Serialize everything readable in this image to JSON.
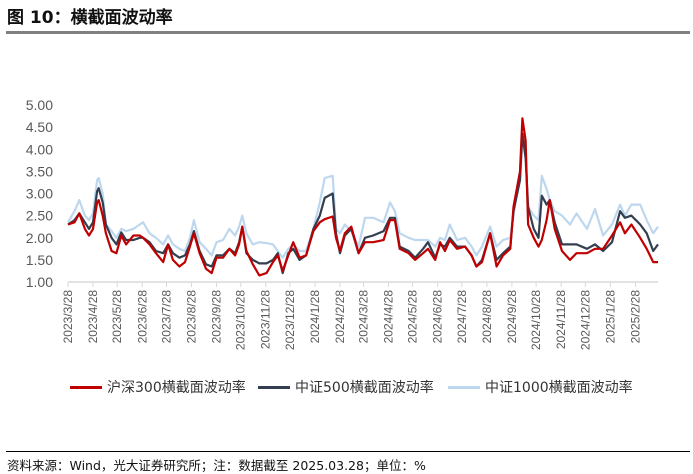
{
  "title": "图 10：横截面波动率",
  "footer": "资料来源：Wind，光大证券研究所；注：数据截至 2025.03.28；单位：%",
  "chart_data": {
    "type": "line",
    "title": "",
    "xlabel": "",
    "ylabel": "",
    "ylim": [
      1.0,
      5.0
    ],
    "yticks": [
      "1.00",
      "1.50",
      "2.00",
      "2.50",
      "3.00",
      "3.50",
      "4.00",
      "4.50",
      "5.00"
    ],
    "xlim": [
      "2023-03-28",
      "2025-03-28"
    ],
    "xticks": [
      "2023/3/28",
      "2023/4/28",
      "2023/5/28",
      "2023/6/28",
      "2023/7/28",
      "2023/8/28",
      "2023/9/28",
      "2023/10/28",
      "2023/11/28",
      "2023/12/28",
      "2024/1/28",
      "2024/2/28",
      "2024/3/28",
      "2024/4/28",
      "2024/5/28",
      "2024/6/28",
      "2024/7/28",
      "2024/8/28",
      "2024/9/28",
      "2024/10/28",
      "2024/11/28",
      "2024/12/28",
      "2025/1/28",
      "2025/2/28"
    ],
    "grid": false,
    "legend_position": "bottom",
    "x": [
      "2023-03-28",
      "2023-04-05",
      "2023-04-11",
      "2023-04-18",
      "2023-04-23",
      "2023-04-28",
      "2023-05-03",
      "2023-05-05",
      "2023-05-10",
      "2023-05-14",
      "2023-05-21",
      "2023-05-27",
      "2023-06-02",
      "2023-06-08",
      "2023-06-17",
      "2023-06-25",
      "2023-06-29",
      "2023-07-07",
      "2023-07-15",
      "2023-07-24",
      "2023-07-30",
      "2023-08-05",
      "2023-08-13",
      "2023-08-20",
      "2023-08-26",
      "2023-08-31",
      "2023-09-07",
      "2023-09-15",
      "2023-09-22",
      "2023-09-28",
      "2023-10-06",
      "2023-10-14",
      "2023-10-21",
      "2023-10-26",
      "2023-10-30",
      "2023-11-04",
      "2023-11-12",
      "2023-11-20",
      "2023-11-29",
      "2023-12-07",
      "2023-12-13",
      "2023-12-19",
      "2023-12-26",
      "2024-01-01",
      "2024-01-09",
      "2024-01-17",
      "2024-01-26",
      "2024-02-03",
      "2024-02-09",
      "2024-02-19",
      "2024-02-23",
      "2024-02-28",
      "2024-03-05",
      "2024-03-13",
      "2024-03-22",
      "2024-03-30",
      "2024-04-09",
      "2024-04-22",
      "2024-04-30",
      "2024-05-06",
      "2024-05-12",
      "2024-05-23",
      "2024-05-31",
      "2024-06-10",
      "2024-06-16",
      "2024-06-25",
      "2024-07-01",
      "2024-07-07",
      "2024-07-13",
      "2024-07-22",
      "2024-08-01",
      "2024-08-09",
      "2024-08-15",
      "2024-08-22",
      "2024-09-01",
      "2024-09-09",
      "2024-09-17",
      "2024-09-26",
      "2024-09-30",
      "2024-10-08",
      "2024-10-11",
      "2024-10-15",
      "2024-10-18",
      "2024-10-25",
      "2024-10-31",
      "2024-11-04",
      "2024-11-10",
      "2024-11-14",
      "2024-11-20",
      "2024-11-29",
      "2024-12-09",
      "2024-12-17",
      "2024-12-30",
      "2025-01-09",
      "2025-01-19",
      "2025-01-30",
      "2025-02-09",
      "2025-02-15",
      "2025-02-23",
      "2025-03-06",
      "2025-03-14",
      "2025-03-22",
      "2025-03-28"
    ],
    "series": [
      {
        "name": "沪深300横截面波动率",
        "color": "#c00000",
        "values": [
          2.3,
          2.35,
          2.55,
          2.2,
          2.05,
          2.2,
          2.8,
          2.85,
          2.5,
          2.1,
          1.7,
          1.65,
          2.05,
          1.85,
          2.05,
          2.05,
          2.0,
          1.85,
          1.65,
          1.45,
          1.85,
          1.5,
          1.35,
          1.45,
          1.8,
          2.1,
          1.65,
          1.3,
          1.2,
          1.55,
          1.55,
          1.75,
          1.6,
          1.85,
          2.25,
          1.7,
          1.4,
          1.15,
          1.2,
          1.45,
          1.6,
          1.25,
          1.6,
          1.9,
          1.55,
          1.6,
          2.15,
          2.35,
          2.42,
          2.48,
          2.0,
          1.7,
          2.1,
          2.25,
          1.65,
          1.9,
          1.9,
          1.95,
          2.4,
          2.4,
          1.75,
          1.65,
          1.5,
          1.65,
          1.75,
          1.5,
          1.9,
          1.7,
          1.95,
          1.75,
          1.8,
          1.6,
          1.35,
          1.45,
          2.1,
          1.35,
          1.6,
          1.75,
          2.7,
          3.5,
          4.7,
          4.2,
          2.3,
          2.0,
          1.8,
          1.95,
          2.4,
          2.85,
          2.2,
          1.7,
          1.5,
          1.65,
          1.65,
          1.75,
          1.75,
          2.05,
          2.35,
          2.1,
          2.3,
          2.0,
          1.75,
          1.45,
          1.45
        ]
      },
      {
        "name": "中证500横截面波动率",
        "color": "#333f50",
        "values": [
          2.3,
          2.4,
          2.55,
          2.35,
          2.2,
          2.35,
          3.05,
          3.12,
          2.8,
          2.3,
          2.0,
          1.85,
          2.12,
          1.95,
          1.95,
          2.0,
          2.0,
          1.9,
          1.7,
          1.65,
          1.85,
          1.65,
          1.55,
          1.6,
          1.85,
          2.15,
          1.7,
          1.4,
          1.35,
          1.6,
          1.6,
          1.75,
          1.65,
          1.9,
          2.25,
          1.65,
          1.5,
          1.42,
          1.42,
          1.5,
          1.65,
          1.2,
          1.65,
          1.75,
          1.5,
          1.6,
          2.2,
          2.5,
          2.9,
          3.0,
          2.1,
          1.65,
          2.05,
          2.2,
          1.65,
          2.0,
          2.05,
          2.15,
          2.45,
          2.45,
          1.8,
          1.7,
          1.55,
          1.75,
          1.9,
          1.55,
          1.85,
          1.8,
          2.0,
          1.8,
          1.8,
          1.6,
          1.35,
          1.5,
          2.1,
          1.5,
          1.65,
          1.8,
          2.6,
          3.3,
          4.35,
          3.8,
          2.7,
          2.2,
          2.0,
          2.95,
          2.75,
          2.85,
          2.35,
          1.85,
          1.85,
          1.85,
          1.75,
          1.85,
          1.7,
          1.9,
          2.6,
          2.45,
          2.5,
          2.3,
          2.1,
          1.7,
          1.85
        ]
      },
      {
        "name": "中证1000横截面波动率",
        "color": "#bdd7ee",
        "values": [
          2.35,
          2.6,
          2.85,
          2.5,
          2.4,
          2.55,
          3.3,
          3.35,
          3.0,
          2.3,
          2.15,
          2.0,
          2.2,
          2.15,
          2.2,
          2.3,
          2.35,
          2.1,
          2.0,
          1.85,
          2.05,
          1.85,
          1.75,
          1.7,
          2.0,
          2.4,
          1.9,
          1.75,
          1.6,
          1.9,
          1.95,
          2.2,
          2.05,
          2.25,
          2.5,
          2.1,
          1.85,
          1.9,
          1.88,
          1.85,
          1.7,
          1.55,
          1.75,
          1.85,
          1.7,
          1.7,
          2.2,
          2.8,
          3.35,
          3.4,
          2.2,
          2.1,
          2.3,
          2.15,
          1.8,
          2.45,
          2.45,
          2.35,
          2.8,
          2.6,
          2.1,
          2.0,
          1.95,
          1.95,
          1.95,
          1.8,
          2.0,
          1.95,
          2.3,
          1.95,
          2.0,
          1.8,
          1.6,
          1.8,
          2.25,
          1.8,
          1.95,
          2.0,
          2.5,
          3.5,
          4.35,
          3.9,
          2.7,
          2.5,
          2.4,
          3.4,
          3.1,
          2.85,
          2.6,
          2.5,
          2.3,
          2.55,
          2.2,
          2.65,
          2.05,
          2.3,
          2.75,
          2.5,
          2.75,
          2.75,
          2.4,
          2.1,
          2.25
        ]
      }
    ]
  }
}
